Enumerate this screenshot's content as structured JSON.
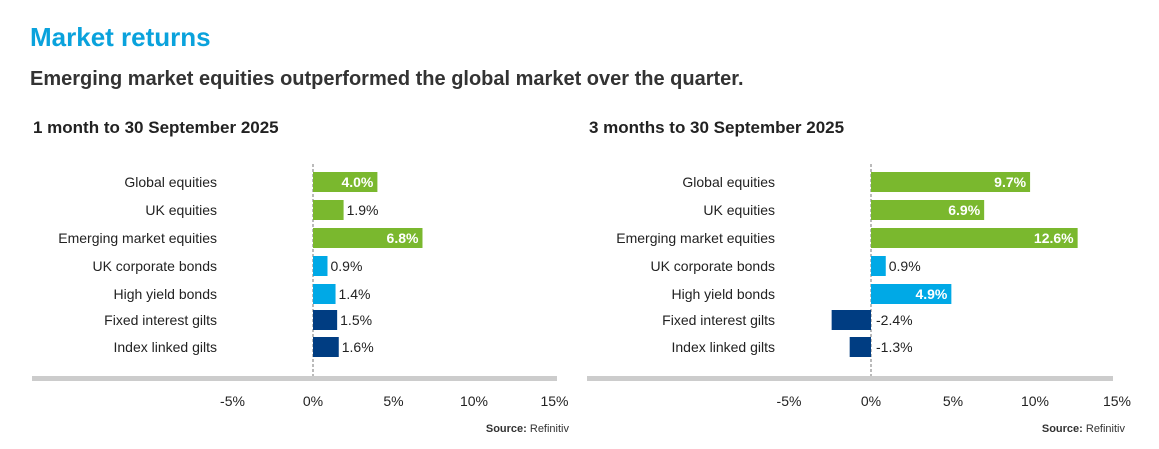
{
  "title": "Market returns",
  "subtitle": "Emerging market equities outperformed the global market over the quarter.",
  "colors": {
    "equities": "#7ab82e",
    "bonds": "#00a9e6",
    "gilts": "#003d82",
    "axis": "#cccccc",
    "title": "#0aa2dc"
  },
  "chart_data": [
    {
      "type": "bar",
      "orientation": "horizontal",
      "title": "1 month to 30 September 2025",
      "categories": [
        "Global equities",
        "UK equities",
        "Emerging market equities",
        "UK corporate bonds",
        "High yield bonds",
        "Fixed interest gilts",
        "Index linked gilts"
      ],
      "values": [
        4.0,
        1.9,
        6.8,
        0.9,
        1.4,
        1.5,
        1.6
      ],
      "value_labels": [
        "4.0%",
        "1.9%",
        "6.8%",
        "0.9%",
        "1.4%",
        "1.5%",
        "1.6%"
      ],
      "groups": [
        "equities",
        "equities",
        "equities",
        "bonds",
        "bonds",
        "gilts",
        "gilts"
      ],
      "xlim": [
        -5,
        15
      ],
      "xticks": [
        "-5%",
        "0%",
        "5%",
        "10%",
        "15%"
      ],
      "source_label": "Source:",
      "source": "Refinitiv"
    },
    {
      "type": "bar",
      "orientation": "horizontal",
      "title": "3 months to 30 September 2025",
      "categories": [
        "Global equities",
        "UK equities",
        "Emerging market equities",
        "UK corporate bonds",
        "High yield bonds",
        "Fixed interest gilts",
        "Index linked gilts"
      ],
      "values": [
        9.7,
        6.9,
        12.6,
        0.9,
        4.9,
        -2.4,
        -1.3
      ],
      "value_labels": [
        "9.7%",
        "6.9%",
        "12.6%",
        "0.9%",
        "4.9%",
        "-2.4%",
        "-1.3%"
      ],
      "groups": [
        "equities",
        "equities",
        "equities",
        "bonds",
        "bonds",
        "gilts",
        "gilts"
      ],
      "xlim": [
        -5,
        15
      ],
      "xticks": [
        "-5%",
        "0%",
        "5%",
        "10%",
        "15%"
      ],
      "source_label": "Source:",
      "source": "Refinitiv"
    }
  ]
}
